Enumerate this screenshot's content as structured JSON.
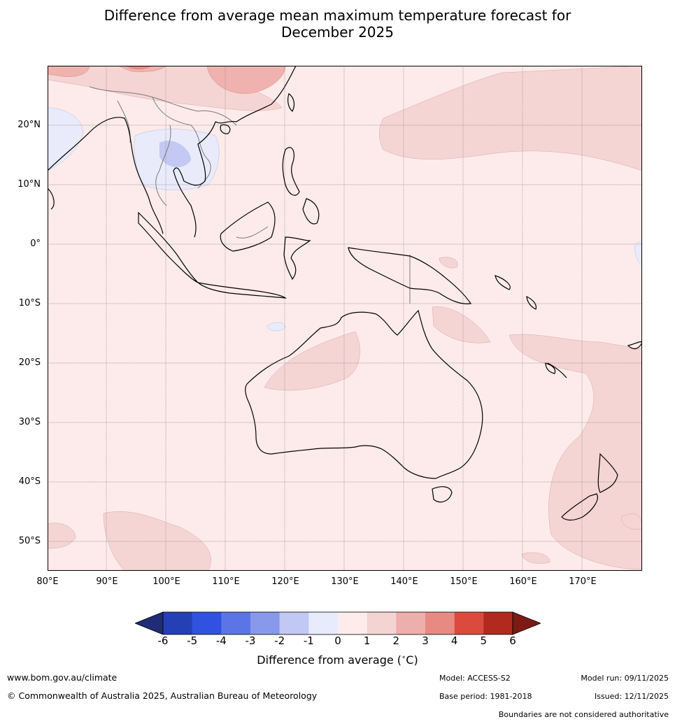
{
  "title_line1": "Difference from average mean maximum temperature forecast for",
  "title_line2": "December 2025",
  "colors": {
    "ocean_land_base": "#fbeae8",
    "band_0_1": "#fdeceb",
    "band_1_2": "#f3d4d3",
    "band_2_3": "#eeb1ad",
    "band_3_4": "#e8867d",
    "band_m1_0": "#e9ebfa",
    "band_m2_m1": "#c1c7f2",
    "coast": "#000000",
    "border": "#7a7a7a",
    "grid": "#8c8c8c"
  },
  "map": {
    "lat_labels": [
      "20°N",
      "10°N",
      "0°",
      "10°S",
      "20°S",
      "30°S",
      "40°S",
      "50°S"
    ],
    "lon_labels": [
      "80°E",
      "90°E",
      "100°E",
      "110°E",
      "120°E",
      "130°E",
      "140°E",
      "150°E",
      "160°E",
      "170°E"
    ]
  },
  "colorbar": {
    "ticks": [
      "-6",
      "-5",
      "-4",
      "-3",
      "-2",
      "-1",
      "0",
      "1",
      "2",
      "3",
      "4",
      "5",
      "6"
    ],
    "colors": [
      "#1f2c78",
      "#2540b5",
      "#3152e0",
      "#5c75e6",
      "#8899ec",
      "#c1c8f3",
      "#e8ebfb",
      "#fdeceb",
      "#f3d4d3",
      "#edafab",
      "#e88a81",
      "#dc4a3e",
      "#b1291f",
      "#7d1a14"
    ],
    "label": "Difference from average (",
    "label_unit": "C)",
    "label_degree": "∘"
  },
  "footer": {
    "url": "www.bom.gov.au/climate",
    "copyright": "© Commonwealth of Australia 2025, Australian Bureau of Meteorology",
    "model": "Model: ACCESS-S2",
    "base_period": "Base period: 1981-2018",
    "model_run": "Model run: 09/11/2025",
    "issued": "Issued: 12/11/2025",
    "disclaimer": "Boundaries are not considered authoritative"
  }
}
